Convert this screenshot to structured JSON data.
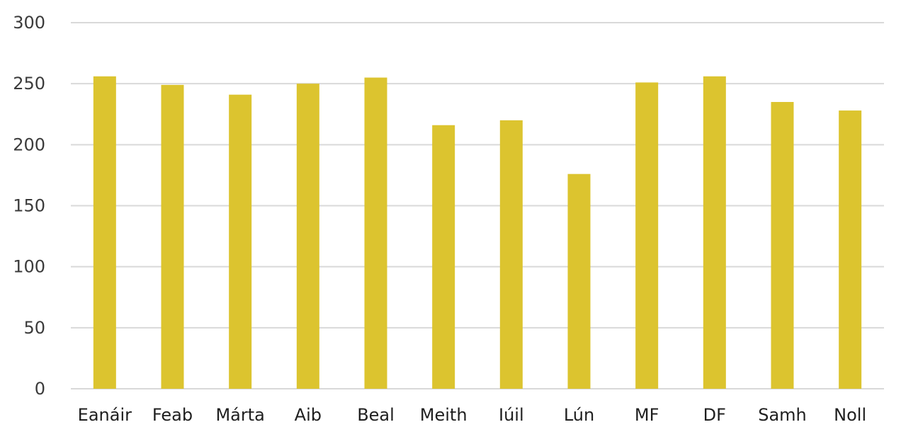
{
  "chart_data": {
    "type": "bar",
    "categories": [
      "Eanáir",
      "Feab",
      "Márta",
      "Aib",
      "Beal",
      "Meith",
      "Iúil",
      "Lún",
      "MF",
      "DF",
      "Samh",
      "Noll"
    ],
    "values": [
      256,
      249,
      241,
      250,
      255,
      216,
      220,
      176,
      251,
      256,
      235,
      228
    ],
    "ylim": [
      0,
      300
    ],
    "yticks": [
      0,
      50,
      100,
      150,
      200,
      250,
      300
    ],
    "grid": true,
    "legend": "none",
    "bar_color": "#dcc42f",
    "grid_color": "#d9d9d9"
  }
}
